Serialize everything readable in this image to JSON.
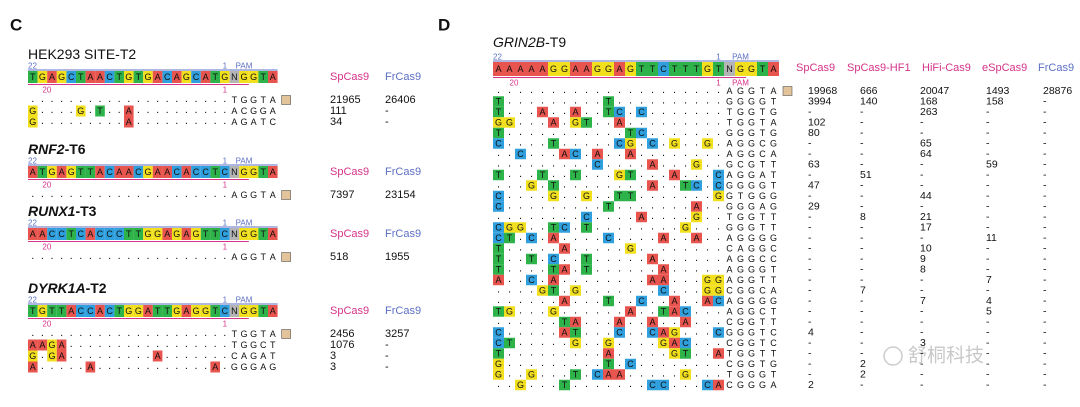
{
  "panel_c": {
    "label": "C",
    "columns": [
      "SpCas9",
      "FrCas9"
    ],
    "targets": [
      {
        "title": "HEK293 SITE-T2",
        "reference": "TGAGCTAACTGTGACAGCATGNGGTA",
        "reads": [
          {
            "seq": ".....................TGGTA",
            "counts": [
              21965,
              26406
            ]
          },
          {
            "seq": "G....G.T..A..........ACGGA",
            "counts": [
              111,
              "-"
            ]
          },
          {
            "seq": "G.........A..........AGATC",
            "counts": [
              34,
              "-"
            ]
          }
        ]
      },
      {
        "gene": "RNF2",
        "site": "-T6",
        "reference": "ATGAGTTACAACGAACACCTCNGGTA",
        "reads": [
          {
            "seq": ".....................AGGTA",
            "counts": [
              7397,
              23154
            ]
          }
        ]
      },
      {
        "gene": "RUNX1",
        "site": "-T3",
        "reference": "AACCTCACCCTTGGAGAGTTCNGGTA",
        "reads": [
          {
            "seq": ".....................AGGTA",
            "counts": [
              518,
              1955
            ]
          }
        ]
      },
      {
        "gene": "DYRK1A",
        "site": "-T2",
        "reference": "TGTTACCACTGGATTGAGGTCNGGTA",
        "reads": [
          {
            "seq": ".....................TGGTA",
            "counts": [
              2456,
              3257
            ]
          },
          {
            "seq": "AAGA.................TGGCT",
            "counts": [
              1076,
              "-"
            ]
          },
          {
            "seq": "G.GA.........A.......CAGAT",
            "counts": [
              3,
              "-"
            ]
          },
          {
            "seq": "A.....A............A.GGGAG",
            "counts": [
              3,
              "-"
            ]
          }
        ]
      }
    ]
  },
  "panel_d": {
    "label": "D",
    "gene": "GRIN2B",
    "site": "-T9",
    "columns": [
      "SpCas9",
      "SpCas9-HF1",
      "HiFi-Cas9",
      "eSpCas9",
      "FrCas9"
    ],
    "reference": "AAAAAGGAAGGAGTTCTTTGTNGGTA",
    "reads": [
      {
        "seq": ".....................AGGTA",
        "counts": [
          19968,
          666,
          20047,
          1493,
          28876
        ]
      },
      {
        "seq": "T.........T..........GGGGT",
        "counts": [
          3994,
          140,
          168,
          158,
          "-"
        ]
      },
      {
        "seq": "T...A..A..TC.C.......TGGTG",
        "counts": [
          "-",
          "-",
          263,
          "-",
          "-"
        ]
      },
      {
        "seq": "GG...A.GT..A.........TGGTA",
        "counts": [
          102,
          "-",
          "-",
          "-",
          "-"
        ]
      },
      {
        "seq": "T...........TC.......GGGTG",
        "counts": [
          80,
          "-",
          "-",
          "-",
          "-"
        ]
      },
      {
        "seq": "C....T.....CG.C.G..G.AGGCG",
        "counts": [
          "-",
          "-",
          65,
          "-",
          "-"
        ]
      },
      {
        "seq": "..C...AC.A..A........AGGCA",
        "counts": [
          "-",
          "-",
          64,
          "-",
          "-"
        ]
      },
      {
        "seq": ".........C....A...G..GCGTT",
        "counts": [
          63,
          "-",
          "-",
          59,
          "-"
        ]
      },
      {
        "seq": "T...T..T...GT...A...CAGGAT",
        "counts": [
          "-",
          51,
          "-",
          "-",
          "-"
        ]
      },
      {
        "seq": "...G.T........A..TC.CGGGGT",
        "counts": [
          47,
          "-",
          "-",
          "-",
          "-"
        ]
      },
      {
        "seq": "C....G..G..TT.......GGTGGG",
        "counts": [
          "-",
          "-",
          44,
          "-",
          "-"
        ]
      },
      {
        "seq": "C.........T.......A..GGGAG",
        "counts": [
          29,
          "-",
          "-",
          "-",
          "-"
        ]
      },
      {
        "seq": "........C....A....G..TGGTT",
        "counts": [
          "-",
          8,
          21,
          "-",
          "-"
        ]
      },
      {
        "seq": "CGG..TC.T........G...GGGTT",
        "counts": [
          "-",
          "-",
          17,
          "-",
          "-"
        ]
      },
      {
        "seq": "CT.C.A....C....A..A..AGGGG",
        "counts": [
          "-",
          "-",
          "-",
          11,
          "-"
        ]
      },
      {
        "seq": "T.....A.....G........CAGGC",
        "counts": [
          "-",
          "-",
          10,
          "-",
          "-"
        ]
      },
      {
        "seq": "T..T.C..T.....A......AGGCC",
        "counts": [
          "-",
          "-",
          9,
          "-",
          "-"
        ]
      },
      {
        "seq": "T....TA.T......A.....AGGGT",
        "counts": [
          "-",
          "-",
          8,
          "-",
          "-"
        ]
      },
      {
        "seq": "A..C.A........AA...GGAGGTT",
        "counts": [
          "-",
          "-",
          "-",
          7,
          "-"
        ]
      },
      {
        "seq": "....GT.G.......C...GGCGGCA",
        "counts": [
          "-",
          7,
          "-",
          "-",
          "-"
        ]
      },
      {
        "seq": "......A...T..C..A..ACAGGGG",
        "counts": [
          "-",
          "-",
          7,
          4,
          "-"
        ]
      },
      {
        "seq": "TG...G......A..TAC...AGGCT",
        "counts": [
          "-",
          "-",
          "-",
          5,
          "-"
        ]
      },
      {
        "seq": "......TA...A..A..A...CGGTT",
        "counts": [
          "-",
          "-",
          "-",
          "-",
          "-"
        ]
      },
      {
        "seq": "C.....AT...C..CAG...CGGGTC",
        "counts": [
          4,
          "-",
          "-",
          "-",
          "-"
        ]
      },
      {
        "seq": "CT.....G..G....GAC...CGGTC",
        "counts": [
          "-",
          "-",
          3,
          "-",
          "-"
        ]
      },
      {
        "seq": "T.........A.....GT..ATGGTT",
        "counts": [
          "-",
          "-",
          "-",
          "-",
          "-"
        ]
      },
      {
        "seq": "G.........T.C........CGGTG",
        "counts": [
          "-",
          2,
          "-",
          "-",
          "-"
        ]
      },
      {
        "seq": "G..G...T.CAA.....G...TGGGT",
        "counts": [
          "-",
          2,
          "-",
          "-",
          "-"
        ]
      },
      {
        "seq": "..G...T.......CC...CACGGGA",
        "counts": [
          2,
          "-",
          "-",
          "-",
          "-"
        ]
      }
    ]
  },
  "position_labels": {
    "spacer_start": "22",
    "seed_start": "20",
    "proximal": "1",
    "pam": "PAM"
  },
  "base_colors": {
    "A": "#e8544e",
    "T": "#2db34a",
    "G": "#f2df1e",
    "C": "#2f9fde",
    "N": "#b4b4b4"
  },
  "column_colors": {
    "SpCas9": "#d6338a",
    "SpCas9-HF1": "#d6338a",
    "HiFi-Cas9": "#d6338a",
    "eSpCas9": "#d6338a",
    "FrCas9": "#5b6fc4"
  },
  "watermark": "舒桐科技"
}
